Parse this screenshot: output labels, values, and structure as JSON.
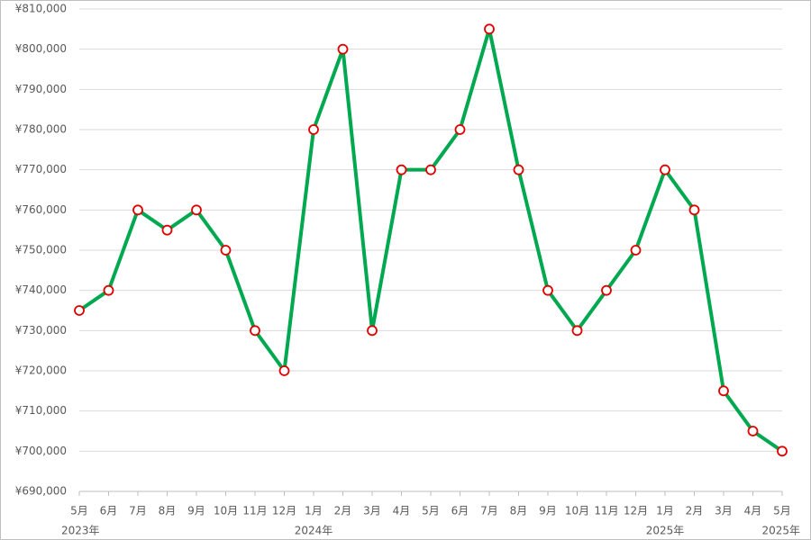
{
  "chart_data": {
    "type": "line",
    "categories": [
      "5月",
      "6月",
      "7月",
      "8月",
      "9月",
      "10月",
      "11月",
      "12月",
      "1月",
      "2月",
      "3月",
      "4月",
      "5月",
      "6月",
      "7月",
      "8月",
      "9月",
      "10月",
      "11月",
      "12月",
      "1月",
      "2月",
      "3月",
      "4月",
      "5月"
    ],
    "year_labels": [
      "2023年",
      null,
      null,
      null,
      null,
      null,
      null,
      null,
      "2024年",
      null,
      null,
      null,
      null,
      null,
      null,
      null,
      null,
      null,
      null,
      null,
      "2025年",
      null,
      null,
      null,
      "2025年"
    ],
    "series": [
      {
        "color": "#00a84f",
        "marker_color": "#e00000",
        "values": [
          735000,
          740000,
          760000,
          755000,
          760000,
          750000,
          730000,
          720000,
          780000,
          800000,
          730000,
          770000,
          770000,
          780000,
          805000,
          770000,
          740000,
          730000,
          740000,
          750000,
          770000,
          760000,
          715000,
          705000,
          700000
        ]
      }
    ],
    "ylim": [
      690000,
      810000
    ],
    "yticks": [
      {
        "value": 690000,
        "label": "¥690,000"
      },
      {
        "value": 700000,
        "label": "¥700,000"
      },
      {
        "value": 710000,
        "label": "¥710,000"
      },
      {
        "value": 720000,
        "label": "¥720,000"
      },
      {
        "value": 730000,
        "label": "¥730,000"
      },
      {
        "value": 740000,
        "label": "¥740,000"
      },
      {
        "value": 750000,
        "label": "¥750,000"
      },
      {
        "value": 760000,
        "label": "¥760,000"
      },
      {
        "value": 770000,
        "label": "¥770,000"
      },
      {
        "value": 780000,
        "label": "¥780,000"
      },
      {
        "value": 790000,
        "label": "¥790,000"
      },
      {
        "value": 800000,
        "label": "¥800,000"
      },
      {
        "value": 810000,
        "label": "¥810,000"
      }
    ],
    "grid": true
  }
}
